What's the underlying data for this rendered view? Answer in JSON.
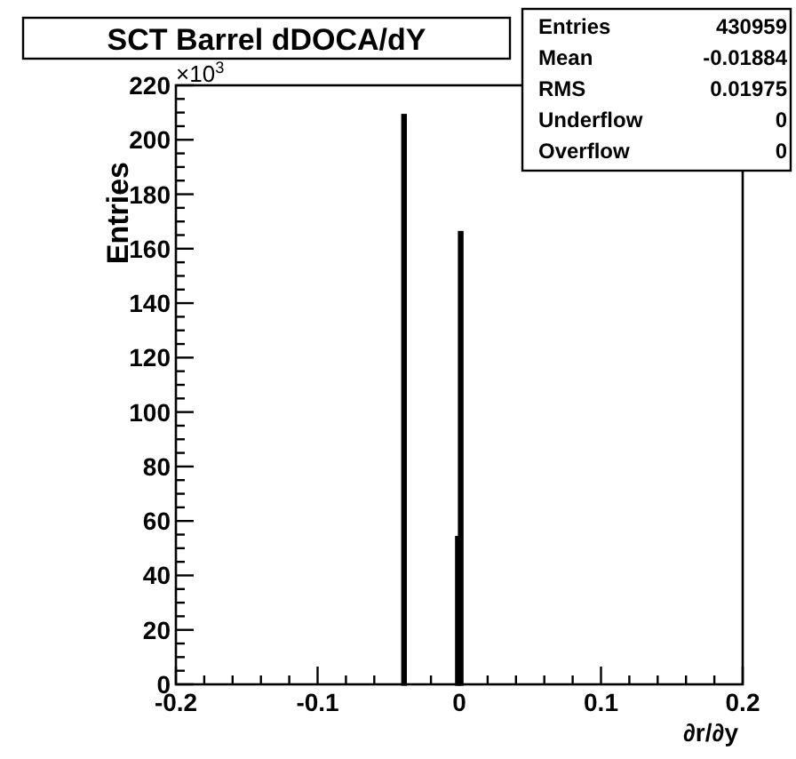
{
  "chart_data": {
    "type": "histogram",
    "title": "SCT Barrel dDOCA/dY",
    "ylabel": "Entries",
    "xlabel": "∂r/∂y",
    "bins": [
      -0.04,
      -0.038,
      -0.002,
      0,
      0.002
    ],
    "values": [
      209,
      0,
      54,
      166
    ],
    "color": "#000000",
    "xlim": [
      -0.2,
      0.2
    ],
    "xticks": [
      -0.2,
      {
        "value": -0.18,
        "label": null
      },
      {
        "value": -0.16,
        "label": null
      },
      {
        "value": -0.14,
        "label": null
      },
      {
        "value": -0.12,
        "label": null
      },
      -0.1,
      {
        "value": -0.08,
        "label": null
      },
      {
        "value": -0.06,
        "label": null
      },
      {
        "value": -0.04,
        "label": null
      },
      {
        "value": -0.02,
        "label": null
      },
      0,
      {
        "value": 0.02,
        "label": null
      },
      {
        "value": 0.04,
        "label": null
      },
      {
        "value": 0.06,
        "label": null
      },
      {
        "value": 0.08,
        "label": null
      },
      0.1,
      {
        "value": 0.12,
        "label": null
      },
      {
        "value": 0.14,
        "label": null
      },
      {
        "value": 0.16,
        "label": null
      },
      {
        "value": 0.18,
        "label": null
      },
      0.2
    ],
    "ylim": [
      0,
      220
    ],
    "yticks": [
      0,
      {
        "value": 5,
        "label": null
      },
      {
        "value": 10,
        "label": null
      },
      {
        "value": 15,
        "label": null
      },
      20,
      {
        "value": 25,
        "label": null
      },
      {
        "value": 30,
        "label": null
      },
      {
        "value": 35,
        "label": null
      },
      40,
      {
        "value": 45,
        "label": null
      },
      {
        "value": 50,
        "label": null
      },
      {
        "value": 55,
        "label": null
      },
      60,
      {
        "value": 65,
        "label": null
      },
      {
        "value": 70,
        "label": null
      },
      {
        "value": 75,
        "label": null
      },
      80,
      {
        "value": 85,
        "label": null
      },
      {
        "value": 90,
        "label": null
      },
      {
        "value": 95,
        "label": null
      },
      100,
      {
        "value": 105,
        "label": null
      },
      {
        "value": 110,
        "label": null
      },
      {
        "value": 115,
        "label": null
      },
      120,
      {
        "value": 125,
        "label": null
      },
      {
        "value": 130,
        "label": null
      },
      {
        "value": 135,
        "label": null
      },
      140,
      {
        "value": 145,
        "label": null
      },
      {
        "value": 150,
        "label": null
      },
      {
        "value": 155,
        "label": null
      },
      160,
      {
        "value": 165,
        "label": null
      },
      {
        "value": 170,
        "label": null
      },
      {
        "value": 175,
        "label": null
      },
      180,
      {
        "value": 185,
        "label": null
      },
      {
        "value": 190,
        "label": null
      },
      {
        "value": 195,
        "label": null
      },
      200,
      {
        "value": 205,
        "label": null
      },
      {
        "value": 210,
        "label": null
      },
      {
        "value": 215,
        "label": null
      },
      220
    ],
    "annotations": [
      "×10$^{3}$",
      "Entries",
      "430959",
      "Mean",
      "-0.01884",
      "RMS",
      "0.01975",
      "Underflow",
      "0",
      "Overflow",
      "0"
    ]
  }
}
